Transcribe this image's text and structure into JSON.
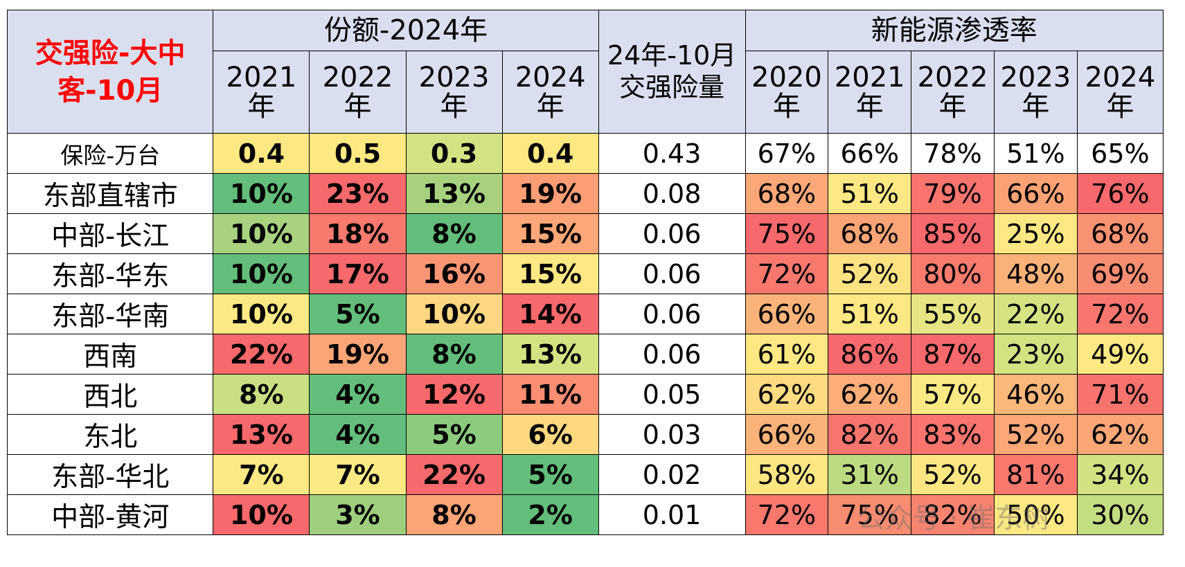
{
  "chart_data": {
    "type": "table",
    "title": "交强险-大中客-10月",
    "header": {
      "share_group": "份额-2024年",
      "amount_col": "24年-10月交强险量",
      "amount_line1": "24年-10月",
      "amount_line2": "交强险量",
      "nev_group": "新能源渗透率",
      "share_years": [
        [
          "2021",
          "年"
        ],
        [
          "2022",
          "年"
        ],
        [
          "2023",
          "年"
        ],
        [
          "2024",
          "年"
        ]
      ],
      "nev_years": [
        [
          "2020",
          "年"
        ],
        [
          "2021",
          "年"
        ],
        [
          "2022",
          "年"
        ],
        [
          "2023",
          "年"
        ],
        [
          "2024",
          "年"
        ]
      ]
    },
    "rows": [
      {
        "label": "保险-万台",
        "share": [
          "0.4",
          "0.5",
          "0.3",
          "0.4"
        ],
        "amount": "0.43",
        "nev": [
          "67%",
          "66%",
          "78%",
          "51%",
          "65%"
        ]
      },
      {
        "label": "东部直辖市",
        "share": [
          "10%",
          "23%",
          "13%",
          "19%"
        ],
        "amount": "0.08",
        "nev": [
          "68%",
          "51%",
          "79%",
          "66%",
          "76%"
        ]
      },
      {
        "label": "中部-长江",
        "share": [
          "10%",
          "18%",
          "8%",
          "15%"
        ],
        "amount": "0.06",
        "nev": [
          "75%",
          "68%",
          "85%",
          "25%",
          "68%"
        ]
      },
      {
        "label": "东部-华东",
        "share": [
          "10%",
          "17%",
          "16%",
          "15%"
        ],
        "amount": "0.06",
        "nev": [
          "72%",
          "52%",
          "80%",
          "48%",
          "69%"
        ]
      },
      {
        "label": "东部-华南",
        "share": [
          "10%",
          "5%",
          "10%",
          "14%"
        ],
        "amount": "0.06",
        "nev": [
          "66%",
          "51%",
          "55%",
          "22%",
          "72%"
        ]
      },
      {
        "label": "西南",
        "share": [
          "22%",
          "19%",
          "8%",
          "13%"
        ],
        "amount": "0.06",
        "nev": [
          "61%",
          "86%",
          "87%",
          "23%",
          "49%"
        ]
      },
      {
        "label": "西北",
        "share": [
          "8%",
          "4%",
          "12%",
          "11%"
        ],
        "amount": "0.05",
        "nev": [
          "62%",
          "62%",
          "57%",
          "46%",
          "71%"
        ]
      },
      {
        "label": "东北",
        "share": [
          "13%",
          "4%",
          "5%",
          "6%"
        ],
        "amount": "0.03",
        "nev": [
          "66%",
          "82%",
          "83%",
          "52%",
          "62%"
        ]
      },
      {
        "label": "东部-华北",
        "share": [
          "7%",
          "7%",
          "22%",
          "5%"
        ],
        "amount": "0.02",
        "nev": [
          "58%",
          "31%",
          "52%",
          "81%",
          "34%"
        ]
      },
      {
        "label": "中部-黄河",
        "share": [
          "10%",
          "3%",
          "8%",
          "2%"
        ],
        "amount": "0.01",
        "nev": [
          "72%",
          "75%",
          "82%",
          "50%",
          "30%"
        ]
      }
    ],
    "cell_colors": {
      "share": [
        [
          "#fde882",
          "#fde882",
          "#d3e282",
          "#fde882"
        ],
        [
          "#63be7b",
          "#f8696b",
          "#a8d17f",
          "#fb9d75"
        ],
        [
          "#a9d27f",
          "#f8796d",
          "#63be7b",
          "#fba777"
        ],
        [
          "#63be7b",
          "#f8696b",
          "#fa9573",
          "#fee883"
        ],
        [
          "#fde984",
          "#63be7b",
          "#fed780",
          "#f8696b"
        ],
        [
          "#f8696b",
          "#fba576",
          "#63be7b",
          "#d4e382"
        ],
        [
          "#c9df82",
          "#63be7b",
          "#f8696b",
          "#fa8d72"
        ],
        [
          "#f8696b",
          "#63be7b",
          "#8ccb7e",
          "#ffd880"
        ],
        [
          "#fde984",
          "#fbea84",
          "#f8696b",
          "#63be7b"
        ],
        [
          "#f8696b",
          "#9fcf7e",
          "#fba476",
          "#63be7b"
        ]
      ],
      "nev": [
        [
          "#ffffff",
          "#ffffff",
          "#ffffff",
          "#ffffff",
          "#ffffff"
        ],
        [
          "#fba777",
          "#fee883",
          "#f8746d",
          "#fba275",
          "#f8696b"
        ],
        [
          "#f8696b",
          "#fba476",
          "#f8696b",
          "#fee883",
          "#f99272"
        ],
        [
          "#f8786e",
          "#fee282",
          "#f87b6e",
          "#fbb279",
          "#f98d72"
        ],
        [
          "#fcb37a",
          "#fee883",
          "#e5e583",
          "#d7e382",
          "#f8766e"
        ],
        [
          "#fee883",
          "#f8696b",
          "#f8696b",
          "#d4e382",
          "#fee883"
        ],
        [
          "#feda81",
          "#fcad78",
          "#fbe983",
          "#fcb87a",
          "#f8736d"
        ],
        [
          "#fcb37a",
          "#f8756d",
          "#f8746d",
          "#fba776",
          "#fba676"
        ],
        [
          "#fee683",
          "#bcdb81",
          "#fee683",
          "#f8786e",
          "#d1e282"
        ],
        [
          "#f8786e",
          "#f88c71",
          "#f88470",
          "#fee883",
          "#c3dd81"
        ]
      ]
    },
    "watermark": "公众号 · 崔东树"
  }
}
